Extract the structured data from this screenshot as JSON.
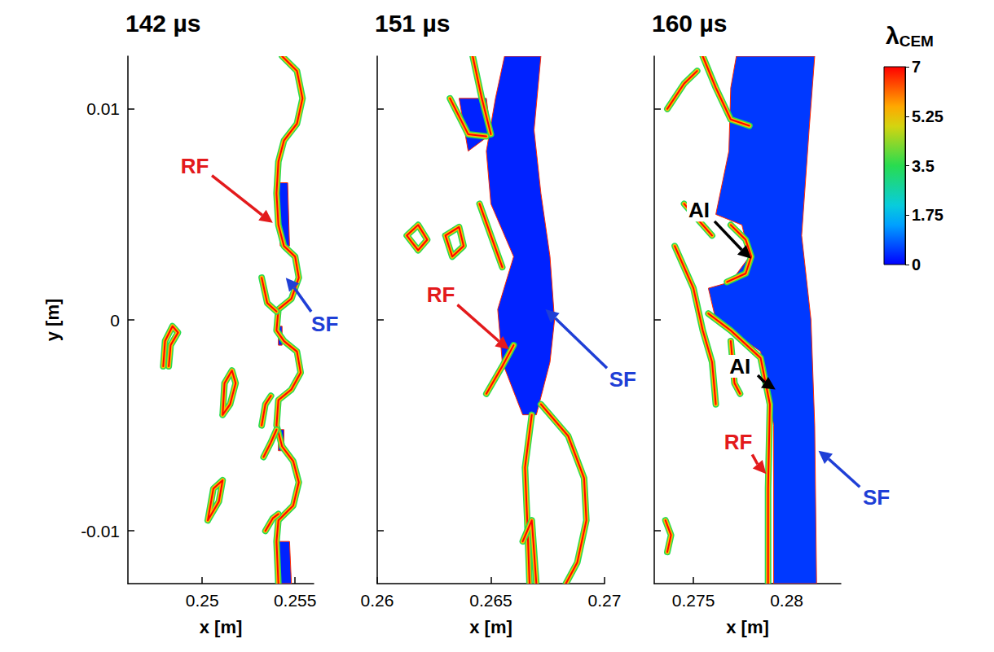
{
  "chart_data": [
    {
      "type": "contour",
      "title": "142 µs",
      "x_label": "x [m]",
      "y_label": "y [m]",
      "grid": false,
      "xlim": [
        0.246,
        0.256
      ],
      "xticks": [
        0.25,
        0.255
      ],
      "ylim": [
        -0.0125,
        0.0125
      ],
      "yticks": [
        -0.01,
        0,
        0.01
      ],
      "regions": [
        {
          "value": 0.3,
          "points": [
            [
              0.2541,
              0.0065
            ],
            [
              0.2546,
              0.0065
            ],
            [
              0.2547,
              0.0035
            ],
            [
              0.2542,
              0.0035
            ]
          ]
        },
        {
          "value": 0.3,
          "points": [
            [
              0.2541,
              -0.0105
            ],
            [
              0.2547,
              -0.0105
            ],
            [
              0.2548,
              -0.0125
            ],
            [
              0.2541,
              -0.0125
            ]
          ]
        },
        {
          "value": 0.3,
          "points": [
            [
              0.2541,
              -0.0003
            ],
            [
              0.2543,
              -0.0003
            ],
            [
              0.2543,
              -0.0012
            ],
            [
              0.2541,
              -0.0012
            ]
          ]
        },
        {
          "value": 0.3,
          "points": [
            [
              0.2541,
              -0.0052
            ],
            [
              0.2544,
              -0.0052
            ],
            [
              0.2544,
              -0.0062
            ],
            [
              0.2541,
              -0.0062
            ]
          ]
        }
      ],
      "fronts": [
        {
          "value": 7,
          "points": [
            [
              0.2543,
              0.0125
            ],
            [
              0.2551,
              0.0118
            ],
            [
              0.2554,
              0.0105
            ],
            [
              0.2551,
              0.0093
            ],
            [
              0.2544,
              0.0085
            ],
            [
              0.2541,
              0.0075
            ],
            [
              0.254,
              0.006
            ],
            [
              0.2541,
              0.0045
            ],
            [
              0.2544,
              0.0035
            ],
            [
              0.255,
              0.003
            ],
            [
              0.2552,
              0.002
            ],
            [
              0.2548,
              0.001
            ],
            [
              0.2541,
              0.0005
            ],
            [
              0.254,
              -0.0005
            ],
            [
              0.2544,
              -0.001
            ],
            [
              0.2551,
              -0.0015
            ],
            [
              0.2553,
              -0.0025
            ],
            [
              0.2548,
              -0.0033
            ],
            [
              0.2541,
              -0.0038
            ],
            [
              0.254,
              -0.005
            ],
            [
              0.2543,
              -0.006
            ],
            [
              0.2549,
              -0.0067
            ],
            [
              0.2552,
              -0.0077
            ],
            [
              0.2549,
              -0.0088
            ],
            [
              0.2541,
              -0.0095
            ],
            [
              0.254,
              -0.0105
            ],
            [
              0.2541,
              -0.0125
            ]
          ]
        },
        {
          "value": 7,
          "points": [
            [
              0.2479,
              -0.0022
            ],
            [
              0.248,
              -0.001
            ],
            [
              0.2484,
              -0.0003
            ],
            [
              0.2487,
              -0.0006
            ],
            [
              0.2483,
              -0.0012
            ],
            [
              0.2482,
              -0.0022
            ]
          ]
        },
        {
          "value": 7,
          "points": [
            [
              0.2511,
              -0.0045
            ],
            [
              0.2512,
              -0.003
            ],
            [
              0.2516,
              -0.0024
            ],
            [
              0.2518,
              -0.003
            ],
            [
              0.2515,
              -0.004
            ],
            [
              0.2511,
              -0.0045
            ]
          ]
        },
        {
          "value": 7,
          "points": [
            [
              0.2503,
              -0.0095
            ],
            [
              0.2506,
              -0.008
            ],
            [
              0.2511,
              -0.0076
            ],
            [
              0.2509,
              -0.0086
            ],
            [
              0.2503,
              -0.0095
            ]
          ]
        },
        {
          "value": 7,
          "points": [
            [
              0.2532,
              -0.005
            ],
            [
              0.2534,
              -0.004
            ],
            [
              0.2537,
              -0.0036
            ]
          ]
        },
        {
          "value": 7,
          "points": [
            [
              0.2532,
              0.002
            ],
            [
              0.2535,
              0.0008
            ],
            [
              0.254,
              0.0004
            ]
          ]
        },
        {
          "value": 7,
          "points": [
            [
              0.2533,
              -0.0065
            ],
            [
              0.2537,
              -0.0058
            ],
            [
              0.254,
              -0.0052
            ]
          ]
        },
        {
          "value": 7,
          "points": [
            [
              0.2534,
              -0.01
            ],
            [
              0.2538,
              -0.0094
            ],
            [
              0.2541,
              -0.0092
            ]
          ]
        }
      ],
      "annotations": [
        {
          "text": "RF",
          "color": "#e31a1c",
          "xy": [
            0.2538,
            0.0046
          ],
          "text_xy": [
            0.2496,
            0.0073
          ]
        },
        {
          "text": "SF",
          "color": "#1f3fd6",
          "xy": [
            0.2545,
            0.002
          ],
          "text_xy": [
            0.2566,
            -0.0002
          ]
        }
      ]
    },
    {
      "type": "contour",
      "title": "151 µs",
      "x_label": "x [m]",
      "grid": false,
      "tick_labels": "x",
      "xlim": [
        0.26,
        0.27
      ],
      "xticks": [
        0.26,
        0.265,
        0.27
      ],
      "ylim": [
        -0.0125,
        0.0125
      ],
      "yticks": [
        -0.01,
        0,
        0.01
      ],
      "regions": [
        {
          "value": 0.3,
          "points": [
            [
              0.2656,
              0.0125
            ],
            [
              0.2672,
              0.0125
            ],
            [
              0.2669,
              0.009
            ],
            [
              0.2672,
              0.006
            ],
            [
              0.2676,
              0.003
            ],
            [
              0.2678,
              0
            ],
            [
              0.2676,
              -0.002
            ],
            [
              0.267,
              -0.0045
            ],
            [
              0.2664,
              -0.0045
            ],
            [
              0.2655,
              -0.002
            ],
            [
              0.2653,
              0.0005
            ],
            [
              0.266,
              0.003
            ],
            [
              0.265,
              0.0055
            ],
            [
              0.2648,
              0.008
            ],
            [
              0.2652,
              0.0105
            ]
          ]
        },
        {
          "value": 0.3,
          "points": [
            [
              0.2636,
              0.0105
            ],
            [
              0.2648,
              0.0105
            ],
            [
              0.265,
              0.0088
            ],
            [
              0.264,
              0.008
            ]
          ]
        }
      ],
      "fronts": [
        {
          "value": 7,
          "points": [
            [
              0.2642,
              0.0125
            ],
            [
              0.2646,
              0.0105
            ],
            [
              0.265,
              0.0088
            ]
          ]
        },
        {
          "value": 7,
          "points": [
            [
              0.2632,
              0.0105
            ],
            [
              0.264,
              0.0088
            ],
            [
              0.2648,
              0.0087
            ]
          ]
        },
        {
          "value": 7,
          "points": [
            [
              0.2645,
              0.0055
            ],
            [
              0.265,
              0.004
            ],
            [
              0.2655,
              0.0025
            ]
          ]
        },
        {
          "value": 7,
          "points": [
            [
              0.2648,
              -0.0035
            ],
            [
              0.2655,
              -0.0022
            ],
            [
              0.266,
              -0.0012
            ]
          ]
        },
        {
          "value": 7,
          "points": [
            [
              0.2672,
              -0.004
            ],
            [
              0.2684,
              -0.0055
            ],
            [
              0.2691,
              -0.0075
            ],
            [
              0.2692,
              -0.0095
            ],
            [
              0.2688,
              -0.0115
            ],
            [
              0.2683,
              -0.0125
            ]
          ]
        },
        {
          "value": 7,
          "points": [
            [
              0.2668,
              -0.0045
            ],
            [
              0.2665,
              -0.007
            ],
            [
              0.2666,
              -0.0095
            ],
            [
              0.2667,
              -0.0125
            ]
          ]
        },
        {
          "value": 7,
          "points": [
            [
              0.2613,
              0.004
            ],
            [
              0.2618,
              0.0045
            ],
            [
              0.2622,
              0.0038
            ],
            [
              0.2618,
              0.0033
            ],
            [
              0.2613,
              0.004
            ]
          ]
        },
        {
          "value": 7,
          "points": [
            [
              0.263,
              0.004
            ],
            [
              0.2636,
              0.0044
            ],
            [
              0.2638,
              0.0035
            ],
            [
              0.2633,
              0.003
            ],
            [
              0.263,
              0.004
            ]
          ]
        },
        {
          "value": 7,
          "points": [
            [
              0.2664,
              -0.0105
            ],
            [
              0.2668,
              -0.0095
            ],
            [
              0.267,
              -0.0125
            ]
          ]
        }
      ],
      "annotations": [
        {
          "text": "RF",
          "color": "#e31a1c",
          "xy": [
            0.2658,
            -0.0014
          ],
          "text_xy": [
            0.2628,
            0.0012
          ]
        },
        {
          "text": "SF",
          "color": "#1f3fd6",
          "xy": [
            0.2674,
            0.0005
          ],
          "text_xy": [
            0.2708,
            -0.0028
          ]
        }
      ]
    },
    {
      "type": "contour",
      "title": "160 µs",
      "x_label": "x [m]",
      "grid": false,
      "tick_labels": "x",
      "xlim": [
        0.2729,
        0.2829
      ],
      "xticks": [
        0.275,
        0.28
      ],
      "ylim": [
        -0.0125,
        0.0125
      ],
      "yticks": [
        -0.01,
        0,
        0.01
      ],
      "regions": [
        {
          "value": 0.5,
          "points": [
            [
              0.2773,
              0.0125
            ],
            [
              0.2815,
              0.0125
            ],
            [
              0.2812,
              0.009
            ],
            [
              0.2808,
              0.004
            ],
            [
              0.2813,
              0
            ],
            [
              0.2815,
              -0.005
            ],
            [
              0.2816,
              -0.0125
            ],
            [
              0.2793,
              -0.0125
            ],
            [
              0.2793,
              -0.005
            ],
            [
              0.2786,
              -0.0015
            ],
            [
              0.2762,
              0
            ],
            [
              0.2758,
              0.0015
            ],
            [
              0.277,
              0.0018
            ],
            [
              0.278,
              0.003
            ],
            [
              0.2776,
              0.0045
            ],
            [
              0.2762,
              0.005
            ],
            [
              0.2769,
              0.008
            ],
            [
              0.277,
              0.011
            ]
          ]
        }
      ],
      "fronts": [
        {
          "value": 7,
          "points": [
            [
              0.279,
              -0.0125
            ],
            [
              0.279,
              -0.008
            ],
            [
              0.2791,
              -0.004
            ],
            [
              0.2786,
              -0.0018
            ],
            [
              0.277,
              -0.0005
            ],
            [
              0.2758,
              0.0003
            ]
          ]
        },
        {
          "value": 7,
          "points": [
            [
              0.277,
              0.0045
            ],
            [
              0.2778,
              0.0038
            ],
            [
              0.2781,
              0.003
            ],
            [
              0.2778,
              0.0022
            ],
            [
              0.2768,
              0.0018
            ]
          ]
        },
        {
          "value": 7,
          "points": [
            [
              0.2755,
              0.0125
            ],
            [
              0.2762,
              0.011
            ],
            [
              0.277,
              0.0095
            ],
            [
              0.278,
              0.0092
            ]
          ]
        },
        {
          "value": 7,
          "points": [
            [
              0.2736,
              0.01
            ],
            [
              0.2745,
              0.0112
            ],
            [
              0.2752,
              0.0118
            ]
          ]
        },
        {
          "value": 7,
          "points": [
            [
              0.2745,
              0.0055
            ],
            [
              0.2752,
              0.0048
            ],
            [
              0.276,
              0.004
            ]
          ]
        },
        {
          "value": 7,
          "points": [
            [
              0.274,
              0.0035
            ],
            [
              0.275,
              0.0015
            ],
            [
              0.2755,
              -0.0005
            ],
            [
              0.276,
              -0.002
            ],
            [
              0.2762,
              -0.004
            ]
          ]
        },
        {
          "value": 7,
          "points": [
            [
              0.277,
              -0.001
            ],
            [
              0.2772,
              -0.003
            ],
            [
              0.2775,
              -0.0035
            ]
          ]
        },
        {
          "value": 7,
          "points": [
            [
              0.2735,
              -0.0095
            ],
            [
              0.2738,
              -0.0102
            ],
            [
              0.2736,
              -0.011
            ]
          ]
        }
      ],
      "annotations": [
        {
          "text": "AI",
          "color": "#000000",
          "xy": [
            0.2781,
            0.0029
          ],
          "text_xy": [
            0.2753,
            0.0052
          ]
        },
        {
          "text": "AI",
          "color": "#000000",
          "xy": [
            0.2794,
            -0.0033
          ],
          "text_xy": [
            0.2775,
            -0.0022
          ]
        },
        {
          "text": "RF",
          "color": "#e31a1c",
          "xy": [
            0.2789,
            -0.0073
          ],
          "text_xy": [
            0.2774,
            -0.0058
          ]
        },
        {
          "text": "SF",
          "color": "#1f3fd6",
          "xy": [
            0.2817,
            -0.0062
          ],
          "text_xy": [
            0.2848,
            -0.0084
          ]
        }
      ],
      "colorbar": {
        "label": "λ",
        "label_sub": "CEM",
        "range": [
          0,
          7
        ],
        "ticks": [
          0,
          1.75,
          3.5,
          5.25,
          7
        ]
      }
    }
  ]
}
